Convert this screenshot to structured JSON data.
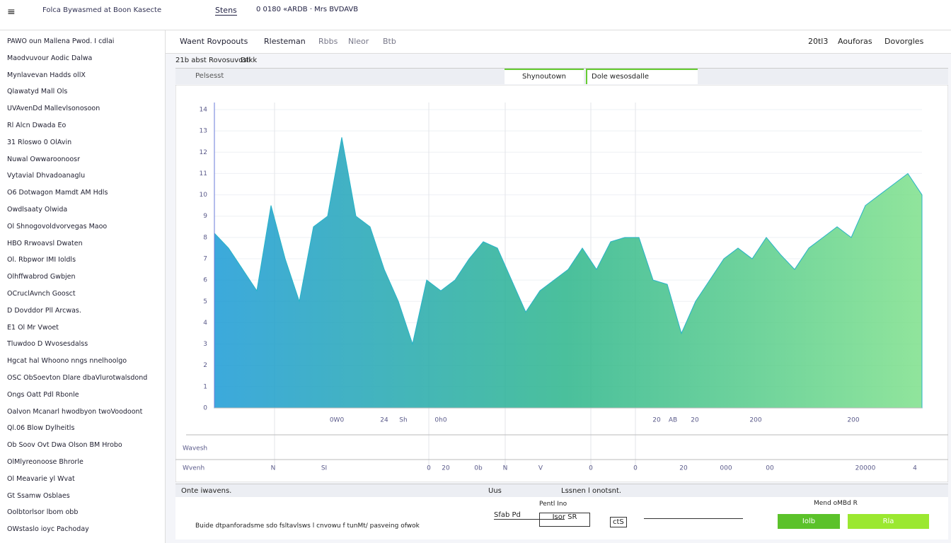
{
  "header": {
    "app_title": "Folca Bywasmed at Boon Kasecte",
    "tab_label": "Stens",
    "status_text": "0 0180 «ARDB · Mrs BVDAVB"
  },
  "sidebar": {
    "items": [
      "PAWO oun Mallena Pwod. I cdlai",
      "Maodvuvour Aodic Dalwa",
      "Mynlavevan Hadds ollX",
      "Qlawatyd Mall Ols",
      "UVAvenDd Mallevlsonosoon",
      "Rl Alcn Dwada Eo",
      "31 Rloswo 0 OlAvin",
      "Nuwal Owwaroonoosr",
      "Vytavial Dhvadoanaglu",
      "O6 Dotwagon Mamdt AM Hdls",
      "Owdlsaaty Olwida",
      "Ol Shnogovoldvorvegas Maoo",
      "HBO Rrwoavsl Dwaten",
      "Ol. Rbpwor IMI Ioldls",
      "Olhffwabrod Gwbjen",
      "OCruclAvnch Goosct",
      "D Dovddor Pll Arcwas.",
      "E1 Ol Mr Vwoet",
      "Tluwdoo D Wvosesdalss",
      "Hgcat hal Whoono nngs nnelhoolgo",
      "OSC ObSoevton Dlare dbaVlurotwalsdond",
      "Ongs Oatt Pdl Rbonle",
      "Oalvon Mcanarl hwodbyon twoVoodoont",
      "Ql.06 Blow Dylheitls",
      "Ob Soov Ovt Dwa Olson BM Hrobo",
      "OlMlyreonoose Bhrorle",
      "Ol Meavarie yl Wvat",
      "Gt Ssamw Osblaes",
      "Oolbtorlsor lbom obb",
      "OWstaslo ioyc Pachoday"
    ]
  },
  "tabs": {
    "items": [
      "Waent Rovpoouts",
      "Rlesteman",
      "Rbbs",
      "Nleor",
      "Btb"
    ],
    "right": [
      "20tl3",
      "Aouforas",
      "Dovorgles"
    ]
  },
  "subheader": {
    "breadcrumb": "21b abst Rovosuvosll",
    "link": "Dtkk"
  },
  "toolbar": {
    "search": "Pelsesst",
    "tab_a": "Shynoutown",
    "tab_b": "Dole wesosdalle"
  },
  "chart_data": {
    "type": "area",
    "values": [
      8.2,
      7.5,
      6.5,
      5.5,
      9.5,
      7,
      5,
      8.5,
      9,
      12.7,
      9,
      8.5,
      6.5,
      5,
      3,
      6,
      5.5,
      6,
      7,
      7.8,
      7.5,
      6,
      4.5,
      5.5,
      6,
      6.5,
      7.5,
      6.5,
      7.8,
      8,
      8,
      6,
      5.8,
      3.5,
      5,
      6,
      7,
      7.5,
      7,
      8,
      7.2,
      6.5,
      7.5,
      8,
      8.5,
      8,
      9.5,
      10,
      10.5,
      11,
      10
    ],
    "ylim": [
      0,
      14
    ],
    "yticks": [
      0,
      1,
      2,
      3,
      4,
      5,
      6,
      7,
      8,
      9,
      10,
      11,
      12,
      13,
      14
    ],
    "colors": [
      "#1a9ad6",
      "#2bb58a",
      "#7de08a"
    ],
    "grid": true,
    "x_labels": [
      "0W0",
      "24",
      "Sh",
      "0h0",
      "20",
      "AB",
      "20",
      "200",
      "200"
    ],
    "lower_label": "Wavesh",
    "axis_label": "Wvenh",
    "axis_ticks": [
      "N",
      "SI",
      "0",
      "20",
      "0b",
      "N",
      "V",
      "0",
      "0",
      "20",
      "000",
      "00",
      "20000",
      "4"
    ]
  },
  "bottom": {
    "title": "Onte iwavens.",
    "col_b": "Uus",
    "col_c": "Lssnen l onotsnt.",
    "note": "Buide dtpanforadsme sdo fsltavlsws l cnvowu f tunMt/ pasveing ofwok",
    "field_a_label": "Pentl Ino",
    "field_a": "Sfab Pd",
    "field_b": "Isor SR",
    "field_c": "ctS",
    "right_label": "Mend oMBd R",
    "btn_a": "Iolb",
    "btn_b": "Rla"
  }
}
